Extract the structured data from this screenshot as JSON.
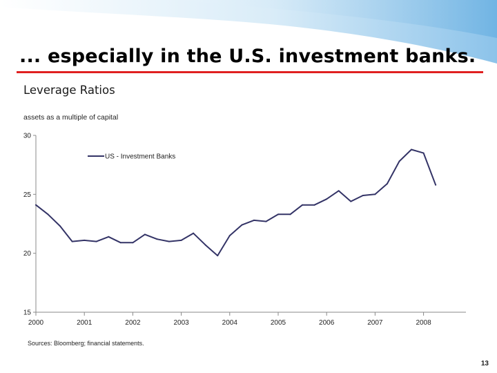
{
  "slide": {
    "title": "... especially in the U.S. investment banks.",
    "page_number": "13",
    "source": "Sources: Bloomberg; financial statements.",
    "accent_color": "#e02020",
    "wave_color": "#8cc3ea"
  },
  "chart_data": {
    "type": "line",
    "title": "Leverage Ratios",
    "ylabel": "assets as a multiple of capital",
    "xlabel": "",
    "xlim": [
      2000,
      2008.875
    ],
    "ylim": [
      15,
      30
    ],
    "xticks": [
      2000,
      2001,
      2002,
      2003,
      2004,
      2005,
      2006,
      2007,
      2008
    ],
    "xtick_labels": [
      "2000",
      "2001",
      "2002",
      "2003",
      "2004",
      "2005",
      "2006",
      "2007",
      "2008"
    ],
    "yticks": [
      15,
      20,
      25,
      30
    ],
    "ytick_labels": [
      "15",
      "20",
      "25",
      "30"
    ],
    "legend_position": "top-left",
    "series": [
      {
        "name": "US - Investment Banks",
        "color": "#333366",
        "x": [
          2000,
          2000.25,
          2000.5,
          2000.75,
          2001,
          2001.25,
          2001.5,
          2001.75,
          2002,
          2002.25,
          2002.5,
          2002.75,
          2003,
          2003.25,
          2003.5,
          2003.75,
          2004,
          2004.25,
          2004.5,
          2004.75,
          2005,
          2005.25,
          2005.5,
          2005.75,
          2006,
          2006.25,
          2006.5,
          2006.75,
          2007,
          2007.25,
          2007.5,
          2007.75,
          2008,
          2008.25
        ],
        "values": [
          24.1,
          23.3,
          22.3,
          21.0,
          21.1,
          21.0,
          21.4,
          20.9,
          20.9,
          21.6,
          21.2,
          21.0,
          21.1,
          21.7,
          20.7,
          19.8,
          21.5,
          22.4,
          22.8,
          22.7,
          23.3,
          23.3,
          24.1,
          24.1,
          24.6,
          25.3,
          24.4,
          24.9,
          25.0,
          25.9,
          27.8,
          28.8,
          28.5,
          25.8
        ]
      }
    ]
  }
}
